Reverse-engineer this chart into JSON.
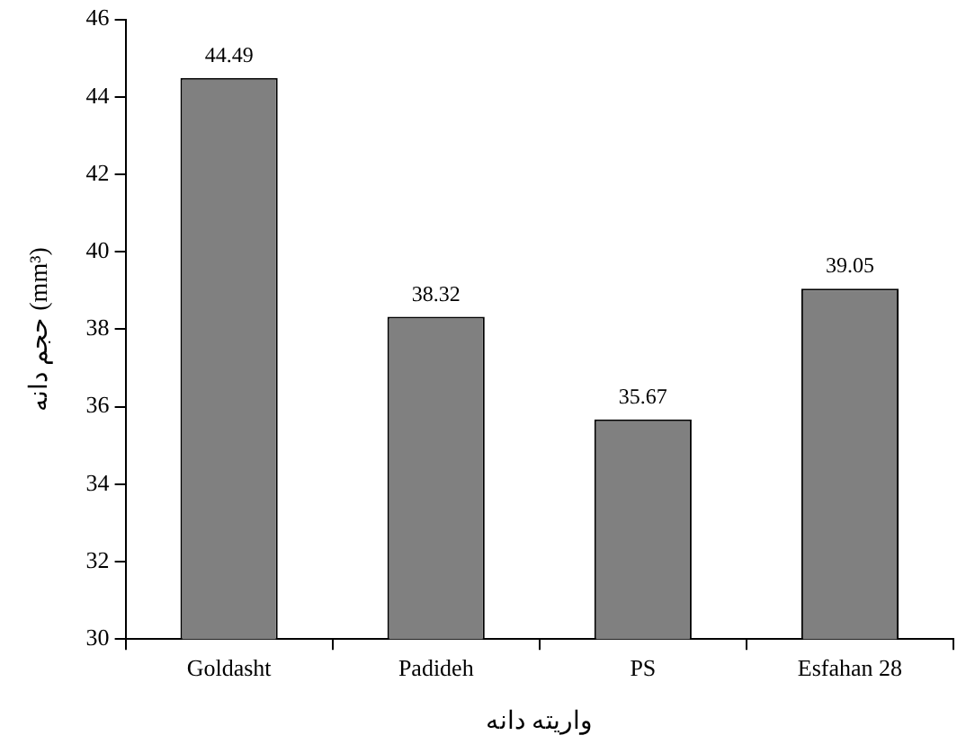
{
  "chart_data": {
    "type": "bar",
    "xlabel": "واریته دانه",
    "ylabel": "حجم دانه (mm³)",
    "categories": [
      "Goldasht",
      "Padideh",
      "PS",
      "Esfahan 28"
    ],
    "values": [
      44.49,
      38.32,
      35.67,
      39.05
    ],
    "color": "#808080",
    "ylim": [
      30,
      46
    ],
    "yticks": [
      30,
      32,
      34,
      36,
      38,
      40,
      42,
      44,
      46
    ],
    "data_labels": true,
    "grid": false,
    "legend": false
  }
}
